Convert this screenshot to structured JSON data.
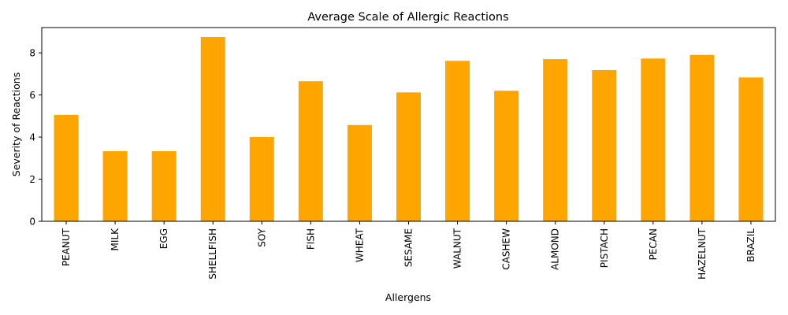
{
  "chart_data": {
    "type": "bar",
    "title": "Average Scale of Allergic Reactions",
    "xlabel": "Allergens",
    "ylabel": "Severity of Reactions",
    "categories": [
      "PEANUT",
      "MILK",
      "EGG",
      "SHELLFISH",
      "SOY",
      "FISH",
      "WHEAT",
      "SESAME",
      "WALNUT",
      "CASHEW",
      "ALMOND",
      "PISTACH",
      "PECAN",
      "HAZELNUT",
      "BRAZIL"
    ],
    "values": [
      5.05,
      3.33,
      3.33,
      8.75,
      4.0,
      6.65,
      4.57,
      6.12,
      7.62,
      6.2,
      7.7,
      7.18,
      7.73,
      7.9,
      6.83
    ],
    "ylim": [
      0,
      9.2
    ],
    "yticks": [
      0,
      2,
      4,
      6,
      8
    ],
    "grid": false,
    "legend": "none",
    "bar_color": "#ffa500"
  }
}
